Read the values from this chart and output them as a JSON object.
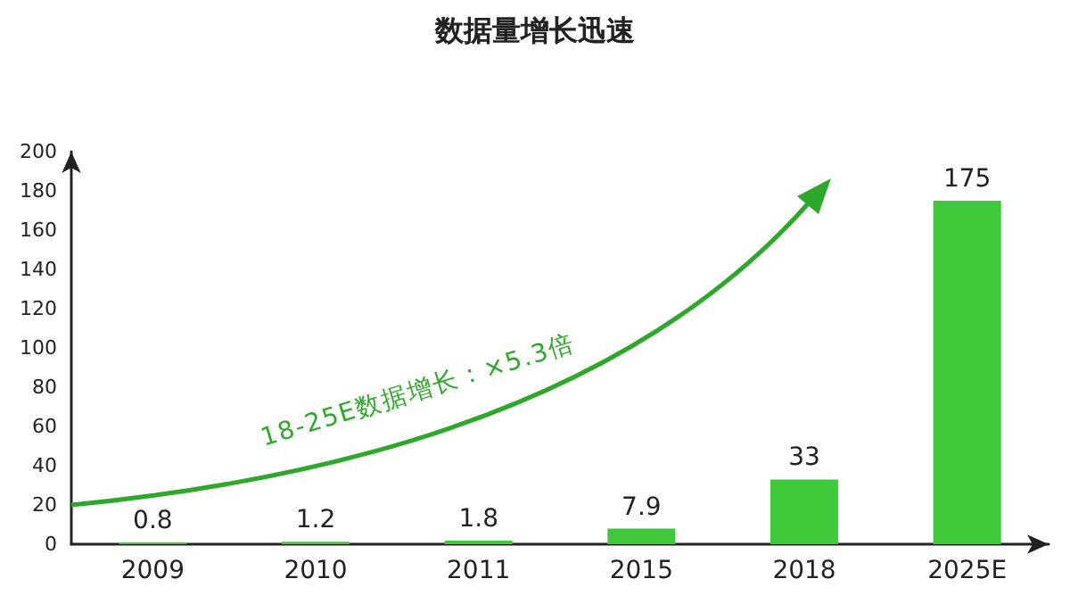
{
  "chart_data": {
    "type": "bar",
    "title": "数据量增长迅速",
    "categories": [
      "2009",
      "2010",
      "2011",
      "2015",
      "2018",
      "2025E"
    ],
    "values": [
      0.8,
      1.2,
      1.8,
      7.9,
      33,
      175
    ],
    "color": "#3fc83a",
    "ylim": [
      0,
      200
    ],
    "yticks": [
      0,
      20,
      40,
      60,
      80,
      100,
      120,
      140,
      160,
      180,
      200
    ],
    "grid": false,
    "data_labels": true,
    "annotations": [
      "18-25E数据增长：×5.3倍"
    ]
  }
}
